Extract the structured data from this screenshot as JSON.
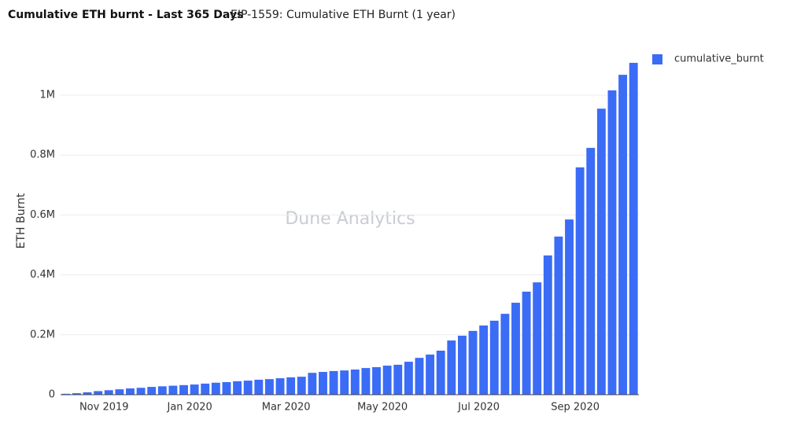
{
  "chart_data": {
    "type": "bar",
    "title": "Cumulative ETH burnt - Last 365 Days",
    "subtitle": "EIP-1559: Cumulative ETH Burnt (1 year)",
    "watermark": "Dune Analytics",
    "y_label": "ETH Burnt",
    "series": [
      {
        "name": "cumulative_burnt",
        "color": "#3b6cf6",
        "values": [
          3000,
          5000,
          8000,
          12000,
          15000,
          18000,
          21000,
          23000,
          26000,
          28000,
          30000,
          32000,
          34000,
          37000,
          40000,
          42000,
          45000,
          47000,
          50000,
          52000,
          55000,
          58000,
          60000,
          73000,
          76000,
          79000,
          81000,
          84000,
          89000,
          92000,
          97000,
          100000,
          110000,
          123000,
          134000,
          147000,
          181000,
          197000,
          213000,
          231000,
          247000,
          270000,
          307000,
          344000,
          375000,
          465000,
          528000,
          585000,
          759000,
          824000,
          955000,
          1016000,
          1068000,
          1108000
        ]
      }
    ],
    "categories": [
      null,
      null,
      null,
      null,
      "Nov 2019",
      null,
      null,
      null,
      null,
      null,
      null,
      null,
      "Jan 2020",
      null,
      null,
      null,
      null,
      null,
      null,
      null,
      null,
      "Mar 2020",
      null,
      null,
      null,
      null,
      null,
      null,
      null,
      null,
      "May 2020",
      null,
      null,
      null,
      null,
      null,
      null,
      null,
      null,
      "Jul 2020",
      null,
      null,
      null,
      null,
      null,
      null,
      null,
      null,
      "Sep 2020",
      null,
      null,
      null,
      null,
      null
    ],
    "ylim": [
      0,
      1155000
    ],
    "yticks": [
      0,
      {
        "value": 200000,
        "label": "0.2M"
      },
      {
        "value": 400000,
        "label": "0.4M"
      },
      {
        "value": 600000,
        "label": "0.6M"
      },
      {
        "value": 800000,
        "label": "0.8M"
      },
      {
        "value": 1000000,
        "label": "1M"
      }
    ],
    "grid": true,
    "legend": "top-right"
  }
}
